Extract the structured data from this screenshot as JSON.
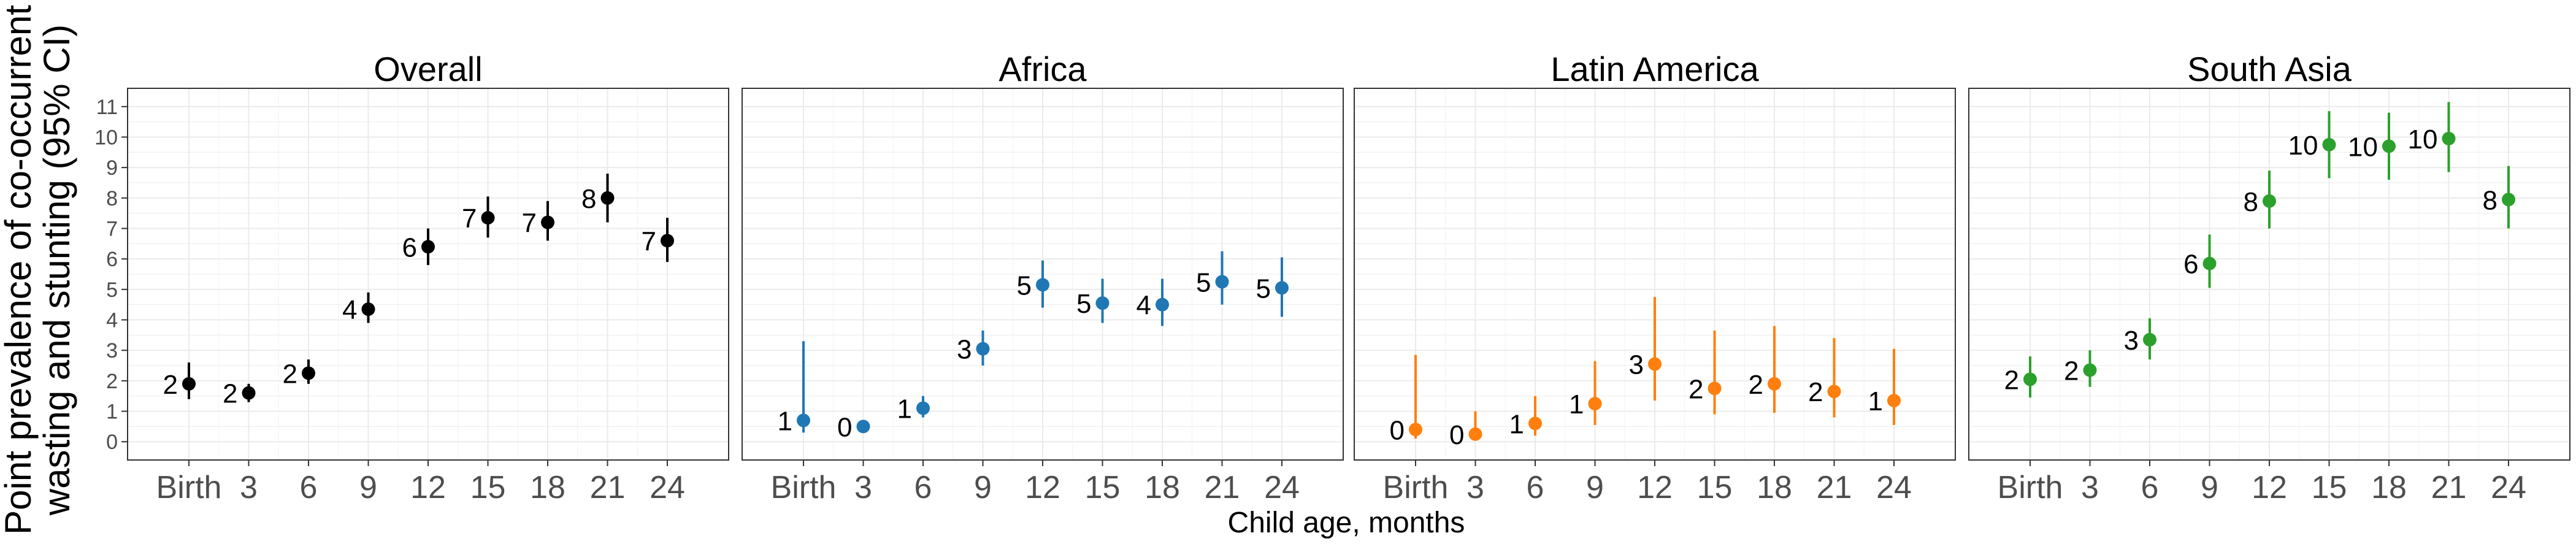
{
  "chart_data": {
    "type": "scatter",
    "ylabel_lines": [
      "Point prevalence of co-occurrent",
      "wasting and stunting (95% CI)"
    ],
    "xlabel": "Child age, months",
    "categories": [
      "Birth",
      "3",
      "6",
      "9",
      "12",
      "15",
      "18",
      "21",
      "24"
    ],
    "y_ticks": [
      "0",
      "1",
      "2",
      "3",
      "4",
      "5",
      "6",
      "7",
      "8",
      "9",
      "10",
      "11"
    ],
    "ylim": [
      -0.6,
      11.6
    ],
    "grid": true,
    "panels": [
      {
        "title": "Overall",
        "color": "#000000",
        "values": [
          1.9,
          1.6,
          2.25,
          4.35,
          6.4,
          7.35,
          7.2,
          8.0,
          6.6
        ],
        "lower": [
          1.4,
          1.3,
          1.9,
          3.9,
          5.8,
          6.7,
          6.6,
          7.2,
          5.9
        ],
        "upper": [
          2.6,
          1.9,
          2.7,
          4.9,
          7.0,
          8.05,
          7.9,
          8.8,
          7.35
        ],
        "labels": [
          "2",
          "2",
          "2",
          "4",
          "6",
          "7",
          "7",
          "8",
          "7"
        ]
      },
      {
        "title": "Africa",
        "color": "#1f77b4",
        "values": [
          0.7,
          0.5,
          1.1,
          3.05,
          5.15,
          4.55,
          4.5,
          5.25,
          5.05
        ],
        "lower": [
          0.3,
          0.35,
          0.8,
          2.5,
          4.4,
          3.9,
          3.8,
          4.5,
          4.1
        ],
        "upper": [
          3.3,
          0.7,
          1.5,
          3.65,
          5.95,
          5.35,
          5.35,
          6.25,
          6.05
        ],
        "labels": [
          "1",
          "0",
          "1",
          "3",
          "5",
          "5",
          "4",
          "5",
          "5"
        ]
      },
      {
        "title": "Latin America",
        "color": "#ff7f0e",
        "values": [
          0.4,
          0.25,
          0.6,
          1.25,
          2.55,
          1.75,
          1.9,
          1.65,
          1.35
        ],
        "lower": [
          0.1,
          0.05,
          0.2,
          0.55,
          1.35,
          0.9,
          0.95,
          0.8,
          0.55
        ],
        "upper": [
          2.85,
          1.0,
          1.5,
          2.65,
          4.75,
          3.65,
          3.8,
          3.4,
          3.05
        ],
        "labels": [
          "0",
          "0",
          "1",
          "1",
          "3",
          "2",
          "2",
          "2",
          "1"
        ]
      },
      {
        "title": "South Asia",
        "color": "#2ca02c",
        "values": [
          2.05,
          2.35,
          3.35,
          5.85,
          7.9,
          9.75,
          9.7,
          9.95,
          7.95
        ],
        "lower": [
          1.45,
          1.8,
          2.7,
          5.05,
          7.0,
          8.65,
          8.6,
          8.85,
          7.0
        ],
        "upper": [
          2.8,
          3.0,
          4.05,
          6.8,
          8.9,
          10.85,
          10.8,
          11.15,
          9.05
        ],
        "labels": [
          "2",
          "2",
          "3",
          "6",
          "8",
          "10",
          "10",
          "10",
          "8"
        ]
      }
    ]
  }
}
